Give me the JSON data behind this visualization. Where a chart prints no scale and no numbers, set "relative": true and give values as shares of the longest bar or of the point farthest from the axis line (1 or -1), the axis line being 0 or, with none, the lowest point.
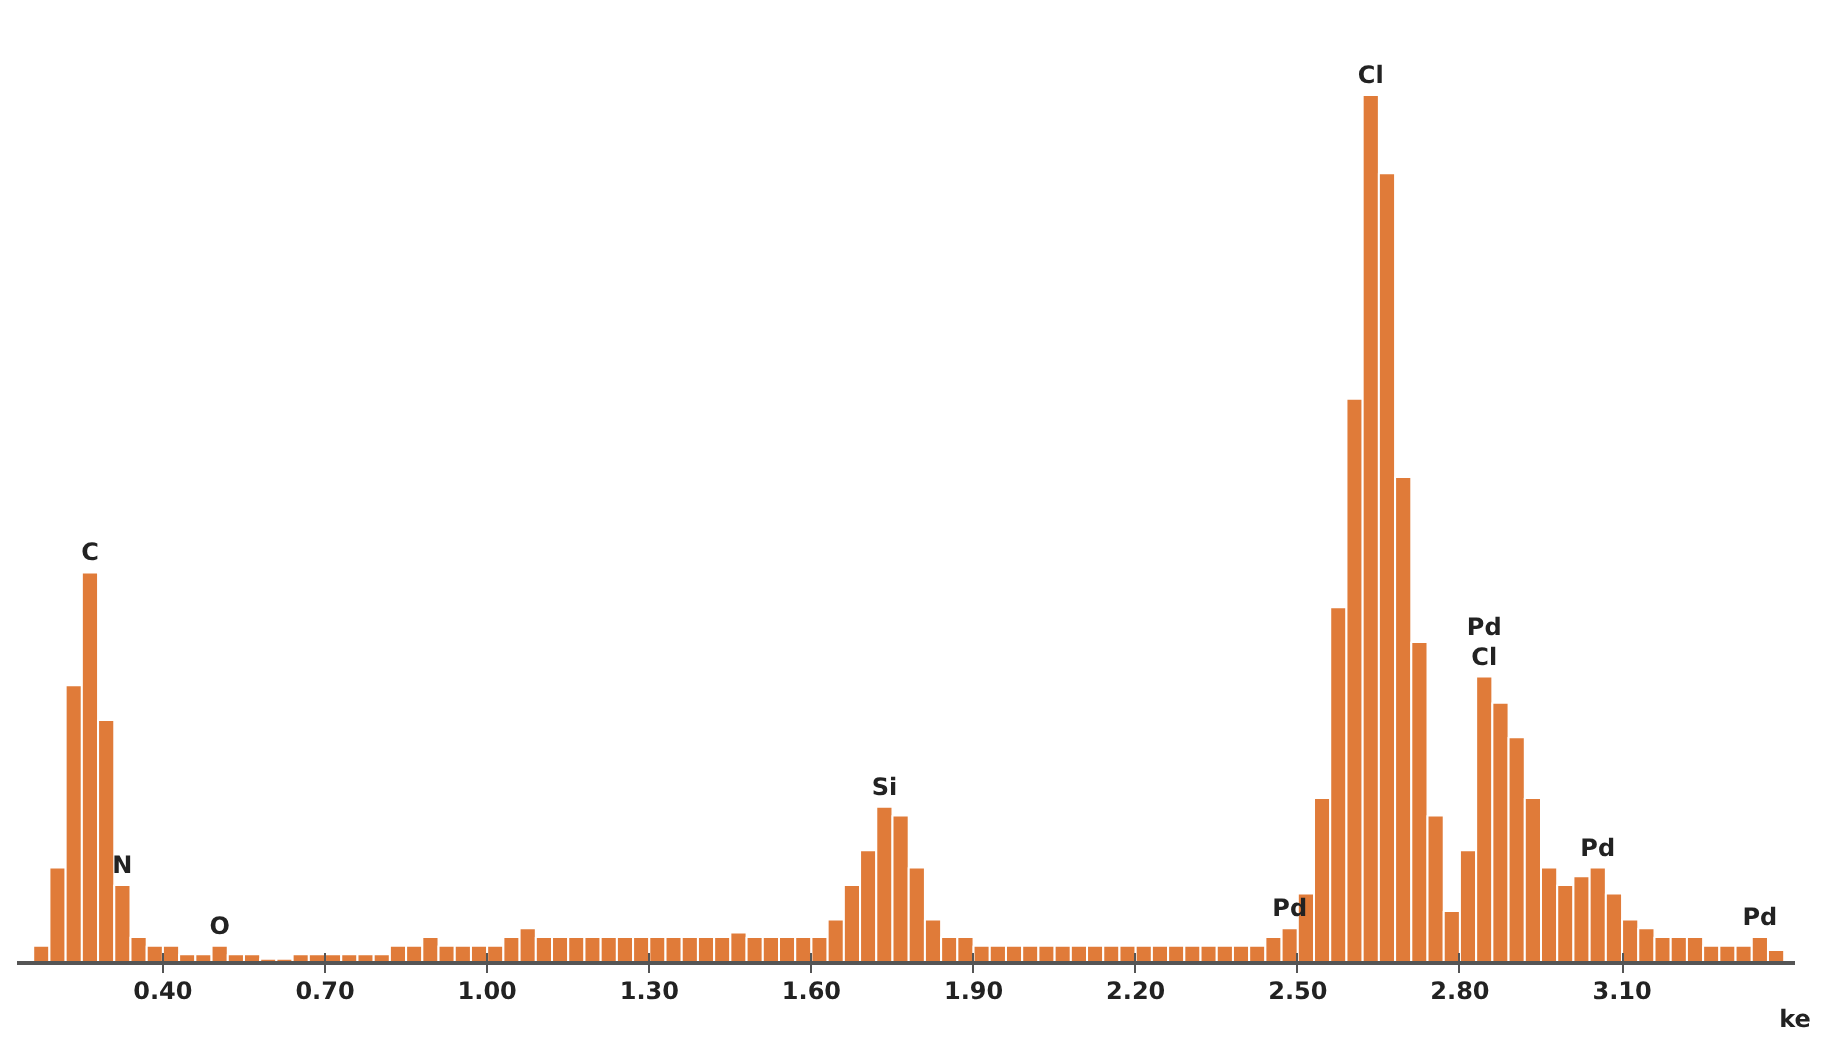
{
  "chart_data": {
    "type": "bar",
    "relative": true,
    "xlabel": "ke",
    "color": "#e07b39",
    "xlim": [
      0.13,
      3.42
    ],
    "xticks": [
      {
        "value": 0.4,
        "label": "0.40"
      },
      {
        "value": 0.7,
        "label": "0.70"
      },
      {
        "value": 1.0,
        "label": "1.00"
      },
      {
        "value": 1.3,
        "label": "1.30"
      },
      {
        "value": 1.6,
        "label": "1.60"
      },
      {
        "value": 1.9,
        "label": "1.90"
      },
      {
        "value": 2.2,
        "label": "2.20"
      },
      {
        "value": 2.5,
        "label": "2.50"
      },
      {
        "value": 2.8,
        "label": "2.80"
      },
      {
        "value": 3.1,
        "label": "3.10"
      }
    ],
    "x": [
      0.175,
      0.205,
      0.235,
      0.265,
      0.295,
      0.325,
      0.355,
      0.385,
      0.415,
      0.445,
      0.475,
      0.505,
      0.535,
      0.565,
      0.595,
      0.625,
      0.655,
      0.685,
      0.715,
      0.745,
      0.775,
      0.805,
      0.835,
      0.865,
      0.895,
      0.925,
      0.955,
      0.985,
      1.015,
      1.045,
      1.075,
      1.105,
      1.135,
      1.165,
      1.195,
      1.225,
      1.255,
      1.285,
      1.315,
      1.345,
      1.375,
      1.405,
      1.435,
      1.465,
      1.495,
      1.525,
      1.555,
      1.585,
      1.615,
      1.645,
      1.675,
      1.705,
      1.735,
      1.765,
      1.795,
      1.825,
      1.855,
      1.885,
      1.915,
      1.945,
      1.975,
      2.005,
      2.035,
      2.065,
      2.095,
      2.125,
      2.155,
      2.185,
      2.215,
      2.245,
      2.275,
      2.305,
      2.335,
      2.365,
      2.395,
      2.425,
      2.455,
      2.485,
      2.515,
      2.545,
      2.575,
      2.605,
      2.635,
      2.665,
      2.695,
      2.725,
      2.755,
      2.785,
      2.815,
      2.845,
      2.875,
      2.905,
      2.935,
      2.965,
      2.995,
      3.025,
      3.055,
      3.085,
      3.115,
      3.145,
      3.175,
      3.205,
      3.235,
      3.265,
      3.295,
      3.325,
      3.355,
      3.385
    ],
    "values": [
      0.02,
      0.11,
      0.32,
      0.45,
      0.28,
      0.09,
      0.03,
      0.02,
      0.02,
      0.01,
      0.01,
      0.02,
      0.01,
      0.01,
      0.005,
      0.005,
      0.01,
      0.01,
      0.01,
      0.01,
      0.01,
      0.01,
      0.02,
      0.02,
      0.03,
      0.02,
      0.02,
      0.02,
      0.02,
      0.03,
      0.04,
      0.03,
      0.03,
      0.03,
      0.03,
      0.03,
      0.03,
      0.03,
      0.03,
      0.03,
      0.03,
      0.03,
      0.03,
      0.035,
      0.03,
      0.03,
      0.03,
      0.03,
      0.03,
      0.05,
      0.09,
      0.13,
      0.18,
      0.17,
      0.11,
      0.05,
      0.03,
      0.03,
      0.02,
      0.02,
      0.02,
      0.02,
      0.02,
      0.02,
      0.02,
      0.02,
      0.02,
      0.02,
      0.02,
      0.02,
      0.02,
      0.02,
      0.02,
      0.02,
      0.02,
      0.02,
      0.03,
      0.04,
      0.08,
      0.19,
      0.41,
      0.65,
      1,
      0.91,
      0.56,
      0.37,
      0.17,
      0.06,
      0.13,
      0.33,
      0.3,
      0.26,
      0.19,
      0.11,
      0.09,
      0.1,
      0.11,
      0.08,
      0.05,
      0.04,
      0.03,
      0.03,
      0.03,
      0.02,
      0.02,
      0.02,
      0.03,
      0.015
    ],
    "annotations": [
      {
        "text": "C",
        "x": 0.265,
        "y": 0.45
      },
      {
        "text": "N",
        "x": 0.325,
        "y": 0.09
      },
      {
        "text": "O",
        "x": 0.505,
        "y": 0.02
      },
      {
        "text": "Si",
        "x": 1.735,
        "y": 0.18
      },
      {
        "text": "Pd",
        "x": 2.485,
        "y": 0.04
      },
      {
        "text": "Cl",
        "x": 2.635,
        "y": 1
      },
      {
        "text": "Pd",
        "x": 2.845,
        "y": 0.33
      },
      {
        "text": "Cl",
        "x": 2.845,
        "y": 0.33
      },
      {
        "text": "Pd",
        "x": 3.055,
        "y": 0.11
      },
      {
        "text": "Pd",
        "x": 3.355,
        "y": 0.03
      }
    ]
  }
}
